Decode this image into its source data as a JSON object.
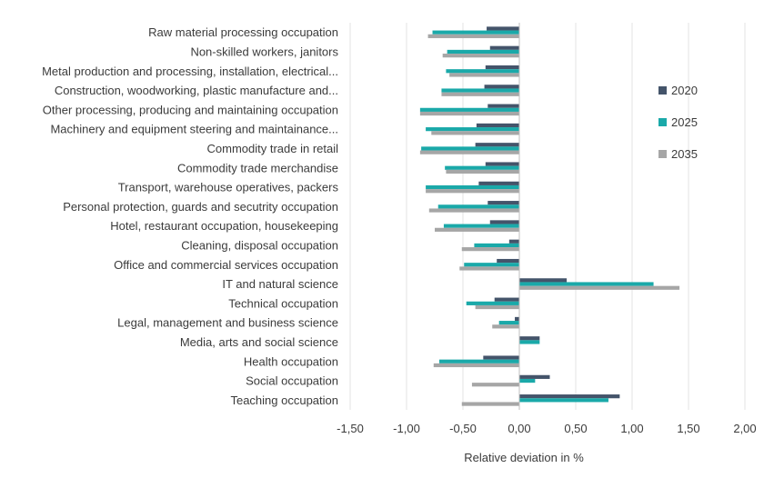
{
  "chart_data": {
    "type": "bar",
    "orientation": "horizontal",
    "title": "",
    "xlabel": "Relative deviation in %",
    "ylabel": "",
    "xlim": [
      -1.5,
      2.0
    ],
    "xticks": [
      -1.5,
      -1.0,
      -0.5,
      0.0,
      0.5,
      1.0,
      1.5,
      2.0
    ],
    "xtick_labels": [
      "-1,50",
      "-1,00",
      "-0,50",
      "0,00",
      "0,50",
      "1,00",
      "1,50",
      "2,00"
    ],
    "grid": "vertical",
    "legend_position": "right",
    "categories": [
      "Raw material processing occupation",
      "Non-skilled workers, janitors",
      "Metal production and processing, installation, electrical...",
      "Construction, woodworking, plastic manufacture and...",
      "Other processing, producing and maintaining occupation",
      "Machinery and equipment steering and maintainance...",
      "Commodity trade in retail",
      "Commodity trade merchandise",
      "Transport, warehouse operatives, packers",
      "Personal protection, guards and secutrity occupation",
      "Hotel, restaurant occupation, housekeeping",
      "Cleaning, disposal occupation",
      "Office and commercial services occupation",
      "IT and natural science",
      "Technical occupation",
      "Legal, management and business science",
      "Media, arts and social science",
      "Health occupation",
      "Social occupation",
      "Teaching occupation"
    ],
    "series": [
      {
        "name": "2020",
        "color": "#44546a",
        "values": [
          -0.29,
          -0.26,
          -0.3,
          -0.31,
          -0.28,
          -0.38,
          -0.39,
          -0.3,
          -0.36,
          -0.28,
          -0.26,
          -0.09,
          -0.2,
          0.42,
          -0.22,
          -0.04,
          0.18,
          -0.32,
          0.27,
          0.89
        ]
      },
      {
        "name": "2025",
        "color": "#1aa9a9",
        "values": [
          -0.77,
          -0.64,
          -0.65,
          -0.69,
          -0.88,
          -0.83,
          -0.87,
          -0.66,
          -0.83,
          -0.72,
          -0.67,
          -0.4,
          -0.49,
          1.19,
          -0.47,
          -0.18,
          0.18,
          -0.71,
          0.14,
          0.79
        ]
      },
      {
        "name": "2035",
        "color": "#a6a6a6",
        "values": [
          -0.81,
          -0.68,
          -0.62,
          -0.69,
          -0.88,
          -0.78,
          -0.88,
          -0.65,
          -0.83,
          -0.8,
          -0.75,
          -0.51,
          -0.53,
          1.42,
          -0.39,
          -0.24,
          0.0,
          -0.76,
          -0.42,
          -0.51
        ]
      }
    ]
  }
}
